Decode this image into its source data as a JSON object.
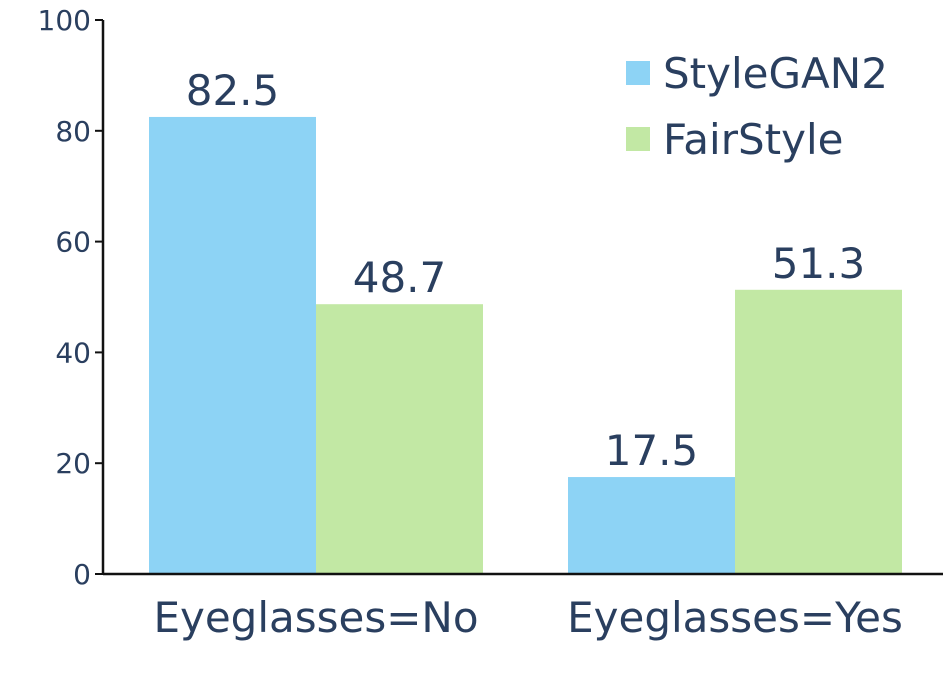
{
  "chart_data": {
    "type": "bar",
    "categories": [
      "Eyeglasses=No",
      "Eyeglasses=Yes"
    ],
    "series": [
      {
        "name": "StyleGAN2",
        "values": [
          82.5,
          17.5
        ],
        "labels": [
          "82.5",
          "17.5"
        ],
        "color": "#8dd3f5"
      },
      {
        "name": "FairStyle",
        "values": [
          48.7,
          51.3
        ],
        "labels": [
          "48.7",
          "51.3"
        ],
        "color": "#c2e8a4"
      }
    ],
    "yticks": [
      "0",
      "20",
      "40",
      "60",
      "80",
      "100"
    ],
    "ylim": [
      0,
      100
    ],
    "title": "",
    "xlabel": "",
    "ylabel": "",
    "legend_position": "top-right",
    "grid": false
  }
}
